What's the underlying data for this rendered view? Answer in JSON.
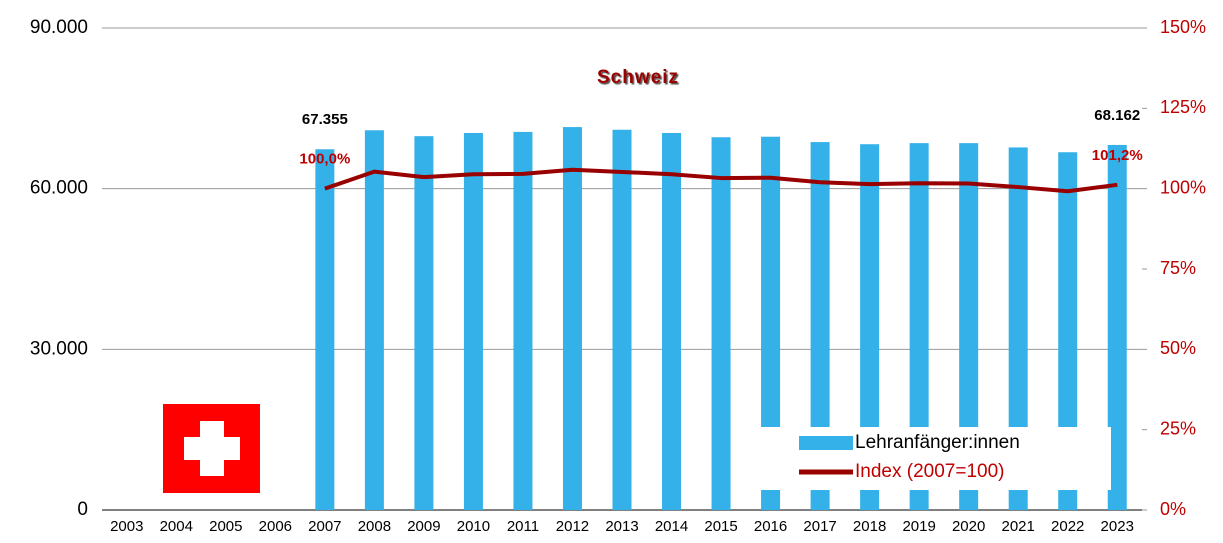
{
  "chart_data": {
    "type": "bar-line",
    "title": "Schweiz",
    "categories": [
      "2003",
      "2004",
      "2005",
      "2006",
      "2007",
      "2008",
      "2009",
      "2010",
      "2011",
      "2012",
      "2013",
      "2014",
      "2015",
      "2016",
      "2017",
      "2018",
      "2019",
      "2020",
      "2021",
      "2022",
      "2023"
    ],
    "series": [
      {
        "name": "Lehranfänger:innen",
        "color": "#33b1e8",
        "type": "bar",
        "values": [
          null,
          null,
          null,
          null,
          67355,
          70900,
          69800,
          70400,
          70600,
          71500,
          71000,
          70400,
          69600,
          69700,
          68700,
          68300,
          68500,
          68500,
          67700,
          66800,
          68162
        ],
        "value_labels": [
          null,
          null,
          null,
          null,
          "67.355",
          null,
          null,
          null,
          null,
          null,
          null,
          null,
          null,
          null,
          null,
          null,
          null,
          null,
          null,
          null,
          "68.162"
        ]
      },
      {
        "name": "Index (2007=100)",
        "color": "#990000",
        "type": "line",
        "axis": "y2",
        "values": [
          null,
          null,
          null,
          null,
          100.0,
          105.3,
          103.6,
          104.5,
          104.6,
          105.9,
          105.2,
          104.5,
          103.3,
          103.4,
          102.0,
          101.4,
          101.7,
          101.6,
          100.5,
          99.2,
          101.2
        ],
        "value_labels": [
          null,
          null,
          null,
          null,
          "100,0%",
          null,
          null,
          null,
          null,
          null,
          null,
          null,
          null,
          null,
          null,
          null,
          null,
          null,
          null,
          null,
          "101,2%"
        ]
      }
    ],
    "ylim": [
      0,
      90000
    ],
    "yticks": [
      0,
      {
        "value": 30000,
        "label": "30.000"
      },
      {
        "value": 60000,
        "label": "60.000"
      },
      {
        "value": 90000,
        "label": "90.000"
      }
    ],
    "y2lim": [
      0,
      150
    ],
    "y2ticks": [
      {
        "value": 0,
        "label": "0%"
      },
      {
        "value": 25,
        "label": "25%"
      },
      {
        "value": 50,
        "label": "50%"
      },
      {
        "value": 75,
        "label": "75%"
      },
      {
        "value": 100,
        "label": "100%"
      },
      {
        "value": 125,
        "label": "125%"
      },
      {
        "value": 150,
        "label": "150%"
      }
    ],
    "grid": true,
    "legend": "lower right"
  }
}
